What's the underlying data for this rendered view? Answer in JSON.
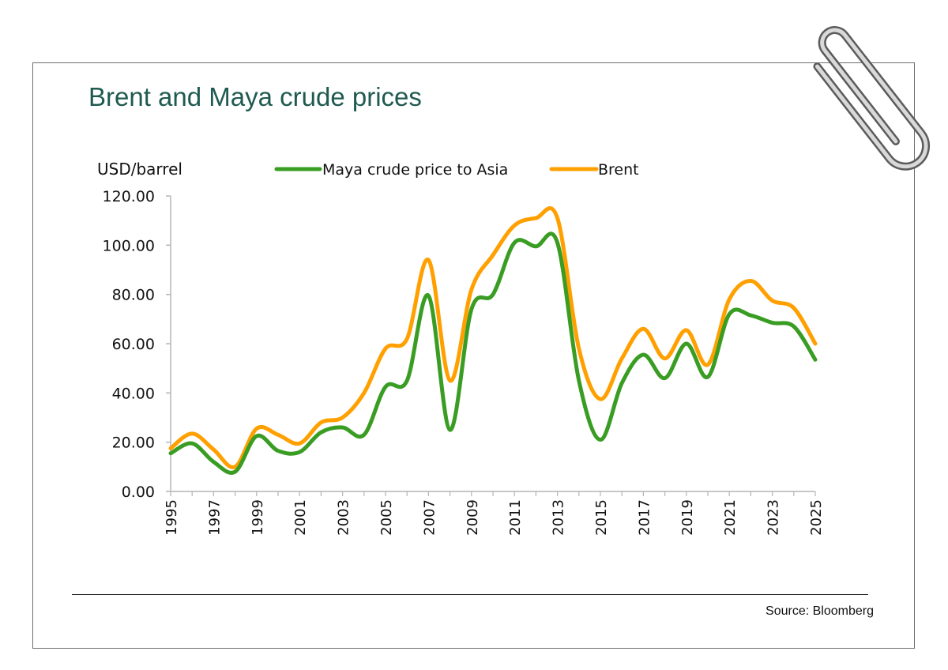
{
  "page": {
    "title": "Brent and Maya crude prices",
    "source": "Source: Bloomberg"
  },
  "colors": {
    "title": "#1f5a50",
    "maya": "#3a9d23",
    "brent": "#ffa000"
  },
  "icons": {
    "clip": "paperclip-icon"
  },
  "chart_data": {
    "type": "line",
    "title": "Brent and Maya crude prices",
    "ylabel": "USD/barrel",
    "xlabel": "",
    "ylim": [
      0,
      120
    ],
    "yticks": [
      "0.00",
      "20.00",
      "40.00",
      "60.00",
      "80.00",
      "100.00",
      "120.00"
    ],
    "xtick_labels": [
      "1995",
      "1997",
      "1999",
      "2001",
      "2003",
      "2005",
      "2007",
      "2009",
      "2011",
      "2013",
      "2015",
      "2017",
      "2019",
      "2021",
      "2023",
      "2025"
    ],
    "x": [
      1995,
      1996,
      1997,
      1998,
      1999,
      2000,
      2001,
      2002,
      2003,
      2004,
      2005,
      2006,
      2007,
      2008,
      2009,
      2010,
      2011,
      2012,
      2013,
      2014,
      2015,
      2016,
      2017,
      2018,
      2019,
      2020,
      2021,
      2022,
      2023,
      2024,
      2025
    ],
    "legend_position": "top",
    "series": [
      {
        "name": "Maya crude price to Asia",
        "color": "#3a9d23",
        "values": [
          15.5,
          19.5,
          12.0,
          8.0,
          22.5,
          16.5,
          16.0,
          24.0,
          26.0,
          23.0,
          42.5,
          45.0,
          79.5,
          25.0,
          74.0,
          80.0,
          101.0,
          99.5,
          101.0,
          45.0,
          21.0,
          44.0,
          55.5,
          46.0,
          60.0,
          46.5,
          72.0,
          71.5,
          68.5,
          67.0,
          53.5
        ]
      },
      {
        "name": "Brent",
        "color": "#ffa000",
        "values": [
          17.5,
          23.5,
          17.0,
          10.0,
          25.5,
          23.0,
          19.5,
          28.0,
          30.0,
          40.0,
          58.0,
          62.0,
          94.0,
          45.0,
          82.0,
          96.0,
          108.0,
          111.0,
          111.0,
          58.0,
          37.5,
          54.0,
          66.0,
          54.0,
          65.5,
          51.5,
          78.0,
          85.5,
          77.5,
          74.5,
          60.0
        ]
      }
    ]
  }
}
